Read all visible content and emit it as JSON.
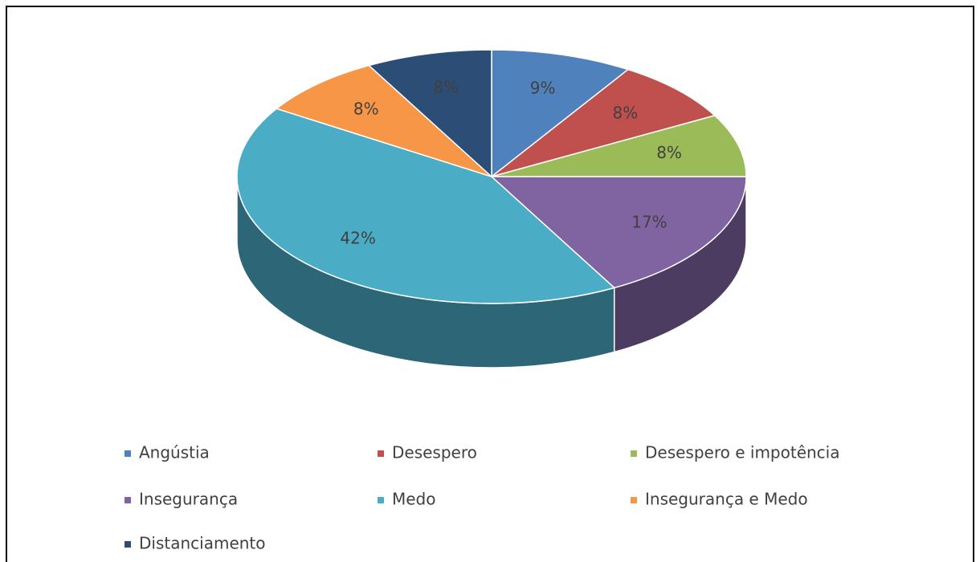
{
  "chart_data": {
    "type": "pie",
    "categories": [
      "Angústia",
      "Desespero",
      "Desespero e impotência",
      "Insegurança",
      "Medo",
      "Insegurança e Medo",
      "Distanciamento"
    ],
    "values": [
      9,
      8,
      8,
      17,
      42,
      8,
      8
    ],
    "value_labels": [
      "9%",
      "8%",
      "8%",
      "17%",
      "42%",
      "8%",
      "8%"
    ],
    "colors": [
      "#4f81bd",
      "#c0504d",
      "#9bbb59",
      "#8064a2",
      "#4bacc6",
      "#f79646",
      "#2c4d75"
    ],
    "legend": "bottom"
  }
}
